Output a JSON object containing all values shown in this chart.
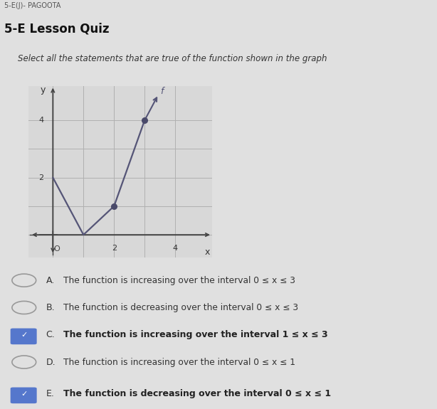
{
  "title": "5-E Lesson Quiz",
  "header_small": "5-E(J)- PAGOOTA",
  "subtitle": "Select all the statements that are true of the function shown in the graph",
  "graph_points": [
    [
      0,
      2
    ],
    [
      1,
      0
    ],
    [
      2,
      1
    ],
    [
      3,
      4
    ]
  ],
  "dot_points": [
    [
      2,
      1
    ],
    [
      3,
      4
    ]
  ],
  "graph_color": "#555577",
  "dot_color": "#4a4a6a",
  "bg_color": "#e0e0e0",
  "graph_bg": "#d8d8d8",
  "grid_color": "#b0b0b0",
  "options": [
    {
      "label": "A",
      "text": "The function is increasing over the interval 0 ≤ x ≤ 3",
      "checked": false
    },
    {
      "label": "B",
      "text": "The function is decreasing over the interval 0 ≤ x ≤ 3",
      "checked": false
    },
    {
      "label": "C",
      "text": "The function is increasing over the interval 1 ≤ x ≤ 3",
      "checked": true
    },
    {
      "label": "D",
      "text": "The function is increasing over the interval 0 ≤ x ≤ 1",
      "checked": false
    },
    {
      "label": "E",
      "text": "The function is decreasing over the interval 0 ≤ x ≤ 1",
      "checked": true
    }
  ],
  "xmin": -0.8,
  "xmax": 5.2,
  "ymin": -0.8,
  "ymax": 5.2,
  "xticks": [
    2,
    4
  ],
  "yticks": [
    2,
    4
  ],
  "xlabel": "x",
  "ylabel": "y",
  "func_label": "f",
  "check_color": "#5577cc",
  "text_color_normal": "#333333",
  "text_color_bold": "#222222"
}
